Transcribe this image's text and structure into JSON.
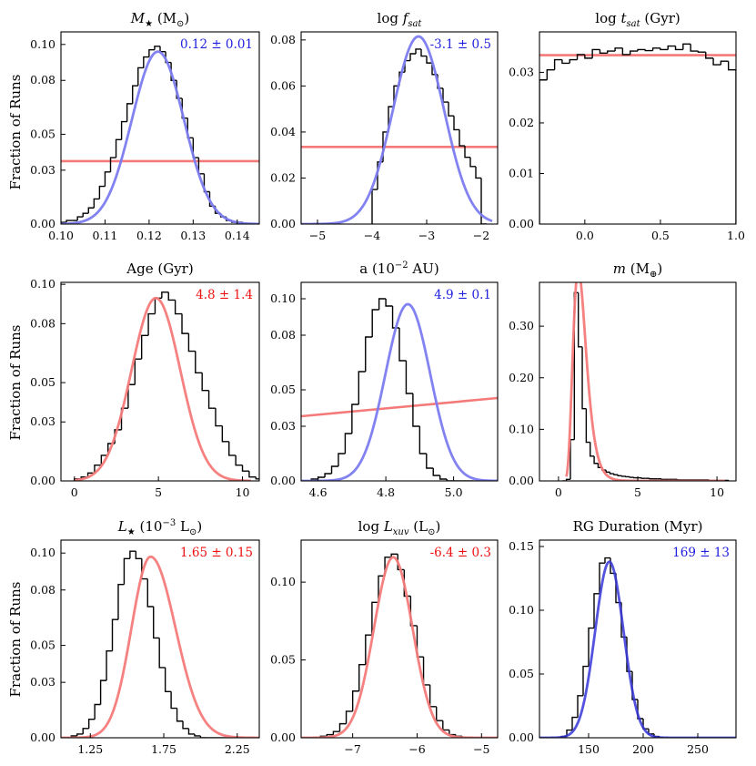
{
  "colors": {
    "histogram": "#000000",
    "fit_blue": "#7b7bf0",
    "fit_red": "#f47a7a",
    "fit_darkblue": "#3535d8",
    "ann_blue": "#2020e0",
    "ann_red": "#ee1111"
  },
  "ylabel": "Fraction of Runs",
  "chart_data": [
    {
      "id": "mstar",
      "type": "histogram",
      "title_html": "<tspan font-style='italic'>M</tspan><tspan font-size='10' dy='4'>★</tspan><tspan dy='-4'> (M</tspan><tspan font-size='10' dy='4'>⊙</tspan><tspan dy='-4'>)</tspan>",
      "annotation": "0.12 ± 0.01",
      "annotation_color": "ann_blue",
      "xlim": [
        0.1,
        0.145
      ],
      "ylim": [
        0,
        0.107
      ],
      "xticks": [
        0.1,
        0.11,
        0.12,
        0.13,
        0.14
      ],
      "xtick_labels": [
        "0.10",
        "0.11",
        "0.12",
        "0.13",
        "0.14"
      ],
      "yticks": [
        0,
        0.03,
        0.05,
        0.08,
        0.1
      ],
      "ytick_labels": [
        "0.00",
        "0.03",
        "0.05",
        "0.08",
        "0.10"
      ],
      "hist": {
        "start": 0.1,
        "step": 0.00125,
        "values": [
          0.001,
          0.002,
          0.002,
          0.004,
          0.006,
          0.009,
          0.014,
          0.021,
          0.029,
          0.037,
          0.047,
          0.057,
          0.067,
          0.077,
          0.087,
          0.093,
          0.097,
          0.099,
          0.096,
          0.09,
          0.08,
          0.07,
          0.059,
          0.048,
          0.037,
          0.028,
          0.018,
          0.01,
          0.006,
          0.004,
          0.002,
          0.001,
          0.001,
          0.0,
          0.0,
          0.0
        ]
      },
      "fit": {
        "kind": "gauss",
        "mu": 0.122,
        "sigma": 0.0059,
        "amp": 0.096,
        "color": "fit_blue"
      },
      "ref_line": {
        "y": 0.035,
        "color": "fit_red"
      }
    },
    {
      "id": "fsat",
      "type": "histogram",
      "title_html": "log <tspan font-style='italic'>f</tspan><tspan font-size='10' font-style='italic' dy='4'>sat</tspan>",
      "annotation": "-3.1 ± 0.5",
      "annotation_color": "ann_blue",
      "xlim": [
        -5.3,
        -1.7
      ],
      "ylim": [
        0,
        0.0835
      ],
      "xticks": [
        -5,
        -4,
        -3,
        -2
      ],
      "xtick_labels": [
        "−5",
        "−4",
        "−3",
        "−2"
      ],
      "yticks": [
        0,
        0.02,
        0.04,
        0.06,
        0.08
      ],
      "ytick_labels": [
        "0.00",
        "0.02",
        "0.04",
        "0.06",
        "0.08"
      ],
      "hist": {
        "start": -4.0,
        "step": 0.1,
        "values": [
          0.015,
          0.027,
          0.04,
          0.051,
          0.06,
          0.066,
          0.071,
          0.074,
          0.076,
          0.073,
          0.07,
          0.065,
          0.059,
          0.053,
          0.047,
          0.041,
          0.034,
          0.029,
          0.025,
          0.02,
          0.0
        ]
      },
      "fit": {
        "kind": "gauss",
        "mu": -3.15,
        "sigma": 0.47,
        "amp": 0.0815,
        "color": "fit_blue",
        "xmax": -1.8
      },
      "ref_line": {
        "y": 0.0335,
        "color": "fit_red"
      }
    },
    {
      "id": "tsat",
      "type": "histogram",
      "title_html": "log <tspan font-style='italic'>t</tspan><tspan font-size='10' font-style='italic' dy='4'>sat</tspan><tspan dy='-4'> (Gyr)</tspan>",
      "annotation": "",
      "annotation_color": "ann_blue",
      "xlim": [
        -0.3,
        1.0
      ],
      "ylim": [
        0,
        0.038
      ],
      "xticks": [
        0.0,
        0.5,
        1.0
      ],
      "xtick_labels": [
        "0.0",
        "0.5",
        "1.0"
      ],
      "yticks": [
        0,
        0.01,
        0.02,
        0.03
      ],
      "ytick_labels": [
        "0.00",
        "0.01",
        "0.02",
        "0.03"
      ],
      "hist": {
        "start": -0.3,
        "step": 0.05,
        "values": [
          0.0285,
          0.0305,
          0.0325,
          0.0318,
          0.0325,
          0.0335,
          0.0328,
          0.0345,
          0.0338,
          0.0342,
          0.0348,
          0.0335,
          0.0342,
          0.0345,
          0.0343,
          0.0348,
          0.0345,
          0.0352,
          0.0345,
          0.0356,
          0.0342,
          0.034,
          0.0328,
          0.0315,
          0.0322,
          0.0305
        ]
      },
      "fit": null,
      "ref_line": {
        "y": 0.0334,
        "color": "fit_red"
      }
    },
    {
      "id": "age",
      "type": "histogram",
      "title_html": "Age (Gyr)",
      "annotation": "4.8 ± 1.4",
      "annotation_color": "ann_red",
      "xlim": [
        -0.8,
        11.0
      ],
      "ylim": [
        0,
        0.101
      ],
      "xticks": [
        0,
        5,
        10
      ],
      "xtick_labels": [
        "0",
        "5",
        "10"
      ],
      "yticks": [
        0,
        0.03,
        0.05,
        0.08,
        0.1
      ],
      "ytick_labels": [
        "0.00",
        "0.03",
        "0.05",
        "0.08",
        "0.10"
      ],
      "hist": {
        "start": 0.0,
        "step": 0.4,
        "values": [
          0.001,
          0.002,
          0.004,
          0.008,
          0.013,
          0.019,
          0.026,
          0.037,
          0.049,
          0.062,
          0.074,
          0.085,
          0.093,
          0.096,
          0.092,
          0.085,
          0.075,
          0.066,
          0.055,
          0.046,
          0.037,
          0.028,
          0.02,
          0.013,
          0.008,
          0.005,
          0.002,
          0.001
        ]
      },
      "fit": {
        "kind": "gauss",
        "mu": 4.85,
        "sigma": 1.45,
        "amp": 0.093,
        "color": "fit_red",
        "xmin": 0.0,
        "xmax": 10.5
      },
      "ref_line": null
    },
    {
      "id": "semi",
      "type": "histogram",
      "title_html": "a (10<tspan font-size='10' dy='-6'>−2</tspan><tspan dy='6'> AU)</tspan>",
      "annotation": "4.9 ± 0.1",
      "annotation_color": "ann_blue",
      "xlim": [
        4.55,
        5.13
      ],
      "ylim": [
        0,
        0.109
      ],
      "xticks": [
        4.6,
        4.8,
        5.0
      ],
      "xtick_labels": [
        "4.6",
        "4.8",
        "5.0"
      ],
      "yticks": [
        0,
        0.03,
        0.05,
        0.08,
        0.1
      ],
      "ytick_labels": [
        "0.00",
        "0.03",
        "0.05",
        "0.08",
        "0.10"
      ],
      "hist": {
        "start": 4.58,
        "step": 0.02,
        "values": [
          0.001,
          0.002,
          0.004,
          0.008,
          0.015,
          0.026,
          0.042,
          0.06,
          0.079,
          0.094,
          0.1,
          0.096,
          0.084,
          0.066,
          0.048,
          0.03,
          0.015,
          0.007,
          0.003,
          0.001,
          0.0,
          0.0,
          0.0,
          0.0
        ]
      },
      "fit": {
        "kind": "gauss",
        "mu": 4.865,
        "sigma": 0.066,
        "amp": 0.097,
        "color": "fit_blue"
      },
      "ref_line": {
        "kind": "slope",
        "y0": 0.0355,
        "y1": 0.0455,
        "color": "fit_red"
      }
    },
    {
      "id": "mass",
      "type": "histogram",
      "title_html": "<tspan font-style='italic'>m</tspan> (M<tspan font-size='10' dy='4'>⊕</tspan><tspan dy='-4'>)</tspan>",
      "annotation": "",
      "annotation_color": "ann_red",
      "xlim": [
        -1.2,
        11.2
      ],
      "ylim": [
        0,
        0.385
      ],
      "xticks": [
        0,
        5,
        10
      ],
      "xtick_labels": [
        "0",
        "5",
        "10"
      ],
      "yticks": [
        0,
        0.1,
        0.2,
        0.3
      ],
      "ytick_labels": [
        "0.00",
        "0.10",
        "0.20",
        "0.30"
      ],
      "hist": {
        "start": 0.25,
        "step": 0.25,
        "values": [
          0.0,
          0.003,
          0.08,
          0.365,
          0.26,
          0.14,
          0.075,
          0.048,
          0.034,
          0.026,
          0.021,
          0.017,
          0.014,
          0.012,
          0.01,
          0.009,
          0.008,
          0.007,
          0.006,
          0.006,
          0.005,
          0.005,
          0.004,
          0.004,
          0.004,
          0.003,
          0.003,
          0.003,
          0.003,
          0.002,
          0.002,
          0.002,
          0.002,
          0.002,
          0.002,
          0.002,
          0.002,
          0.001,
          0.001,
          0.001,
          0.001,
          0.001
        ]
      },
      "fit": {
        "kind": "lognorm",
        "mode": 1.4,
        "s": 0.33,
        "amp": 0.388,
        "color": "fit_red",
        "xmin": 0.5,
        "xmax": 10.5
      },
      "ref_line": null
    },
    {
      "id": "lstar",
      "type": "histogram",
      "title_html": "<tspan font-style='italic'>L</tspan><tspan font-size='10' dy='4'>★</tspan><tspan dy='-4'> (10</tspan><tspan font-size='10' dy='-6'>−3</tspan><tspan dy='6'> L</tspan><tspan font-size='10' dy='4'>⊙</tspan><tspan dy='-4'>)</tspan>",
      "annotation": "1.65 ± 0.15",
      "annotation_color": "ann_red",
      "xlim": [
        1.05,
        2.4
      ],
      "ylim": [
        0,
        0.107
      ],
      "xticks": [
        1.25,
        1.75,
        2.25
      ],
      "xtick_labels": [
        "1.25",
        "1.75",
        "2.25"
      ],
      "yticks": [
        0,
        0.03,
        0.05,
        0.08,
        0.1
      ],
      "ytick_labels": [
        "0.00",
        "0.03",
        "0.05",
        "0.08",
        "0.10"
      ],
      "hist": {
        "start": 1.12,
        "step": 0.04,
        "values": [
          0.001,
          0.002,
          0.005,
          0.01,
          0.018,
          0.031,
          0.047,
          0.064,
          0.083,
          0.097,
          0.101,
          0.097,
          0.086,
          0.071,
          0.054,
          0.038,
          0.025,
          0.016,
          0.009,
          0.005,
          0.002,
          0.001,
          0.0,
          0.0,
          0.0,
          0.0,
          0.0,
          0.0
        ]
      },
      "fit": {
        "kind": "skew",
        "mu": 1.66,
        "sl": 0.13,
        "sr": 0.17,
        "amp": 0.098,
        "color": "fit_red"
      },
      "ref_line": null
    },
    {
      "id": "lxuv",
      "type": "histogram",
      "title_html": "log <tspan font-style='italic'>L</tspan><tspan font-size='10' font-style='italic' dy='4'>xuv</tspan><tspan dy='-4'> (L</tspan><tspan font-size='10' dy='4'>⊙</tspan><tspan dy='-4'>)</tspan>",
      "annotation": "-6.4 ± 0.3",
      "annotation_color": "ann_red",
      "xlim": [
        -7.8,
        -4.75
      ],
      "ylim": [
        0,
        0.127
      ],
      "xticks": [
        -7,
        -6,
        -5
      ],
      "xtick_labels": [
        "−7",
        "−6",
        "−5"
      ],
      "yticks": [
        0,
        0.05,
        0.1
      ],
      "ytick_labels": [
        "0.00",
        "0.05",
        "0.10"
      ],
      "hist": {
        "start": -7.5,
        "step": 0.1,
        "values": [
          0.001,
          0.002,
          0.004,
          0.009,
          0.017,
          0.03,
          0.047,
          0.066,
          0.087,
          0.104,
          0.116,
          0.118,
          0.108,
          0.091,
          0.072,
          0.052,
          0.034,
          0.02,
          0.011,
          0.005,
          0.002,
          0.001
        ]
      },
      "fit": {
        "kind": "gauss",
        "mu": -6.37,
        "sigma": 0.3,
        "amp": 0.116,
        "color": "fit_red"
      },
      "ref_line": null
    },
    {
      "id": "rgdur",
      "type": "histogram",
      "title_html": "RG Duration (Myr)",
      "annotation": "169 ± 13",
      "annotation_color": "ann_blue",
      "xlim": [
        105,
        285
      ],
      "ylim": [
        0,
        0.155
      ],
      "xticks": [
        150,
        200,
        250
      ],
      "xtick_labels": [
        "150",
        "200",
        "250"
      ],
      "yticks": [
        0,
        0.05,
        0.1,
        0.15
      ],
      "ytick_labels": [
        "0.00",
        "0.05",
        "0.10",
        "0.15"
      ],
      "hist": {
        "start": 125,
        "step": 5,
        "values": [
          0.001,
          0.006,
          0.016,
          0.033,
          0.056,
          0.086,
          0.113,
          0.137,
          0.141,
          0.129,
          0.106,
          0.079,
          0.052,
          0.03,
          0.015,
          0.007,
          0.003,
          0.001
        ]
      },
      "fit": {
        "kind": "gauss",
        "mu": 169,
        "sigma": 13,
        "amp": 0.138,
        "color": "fit_darkblue"
      },
      "ref_line": null
    }
  ]
}
